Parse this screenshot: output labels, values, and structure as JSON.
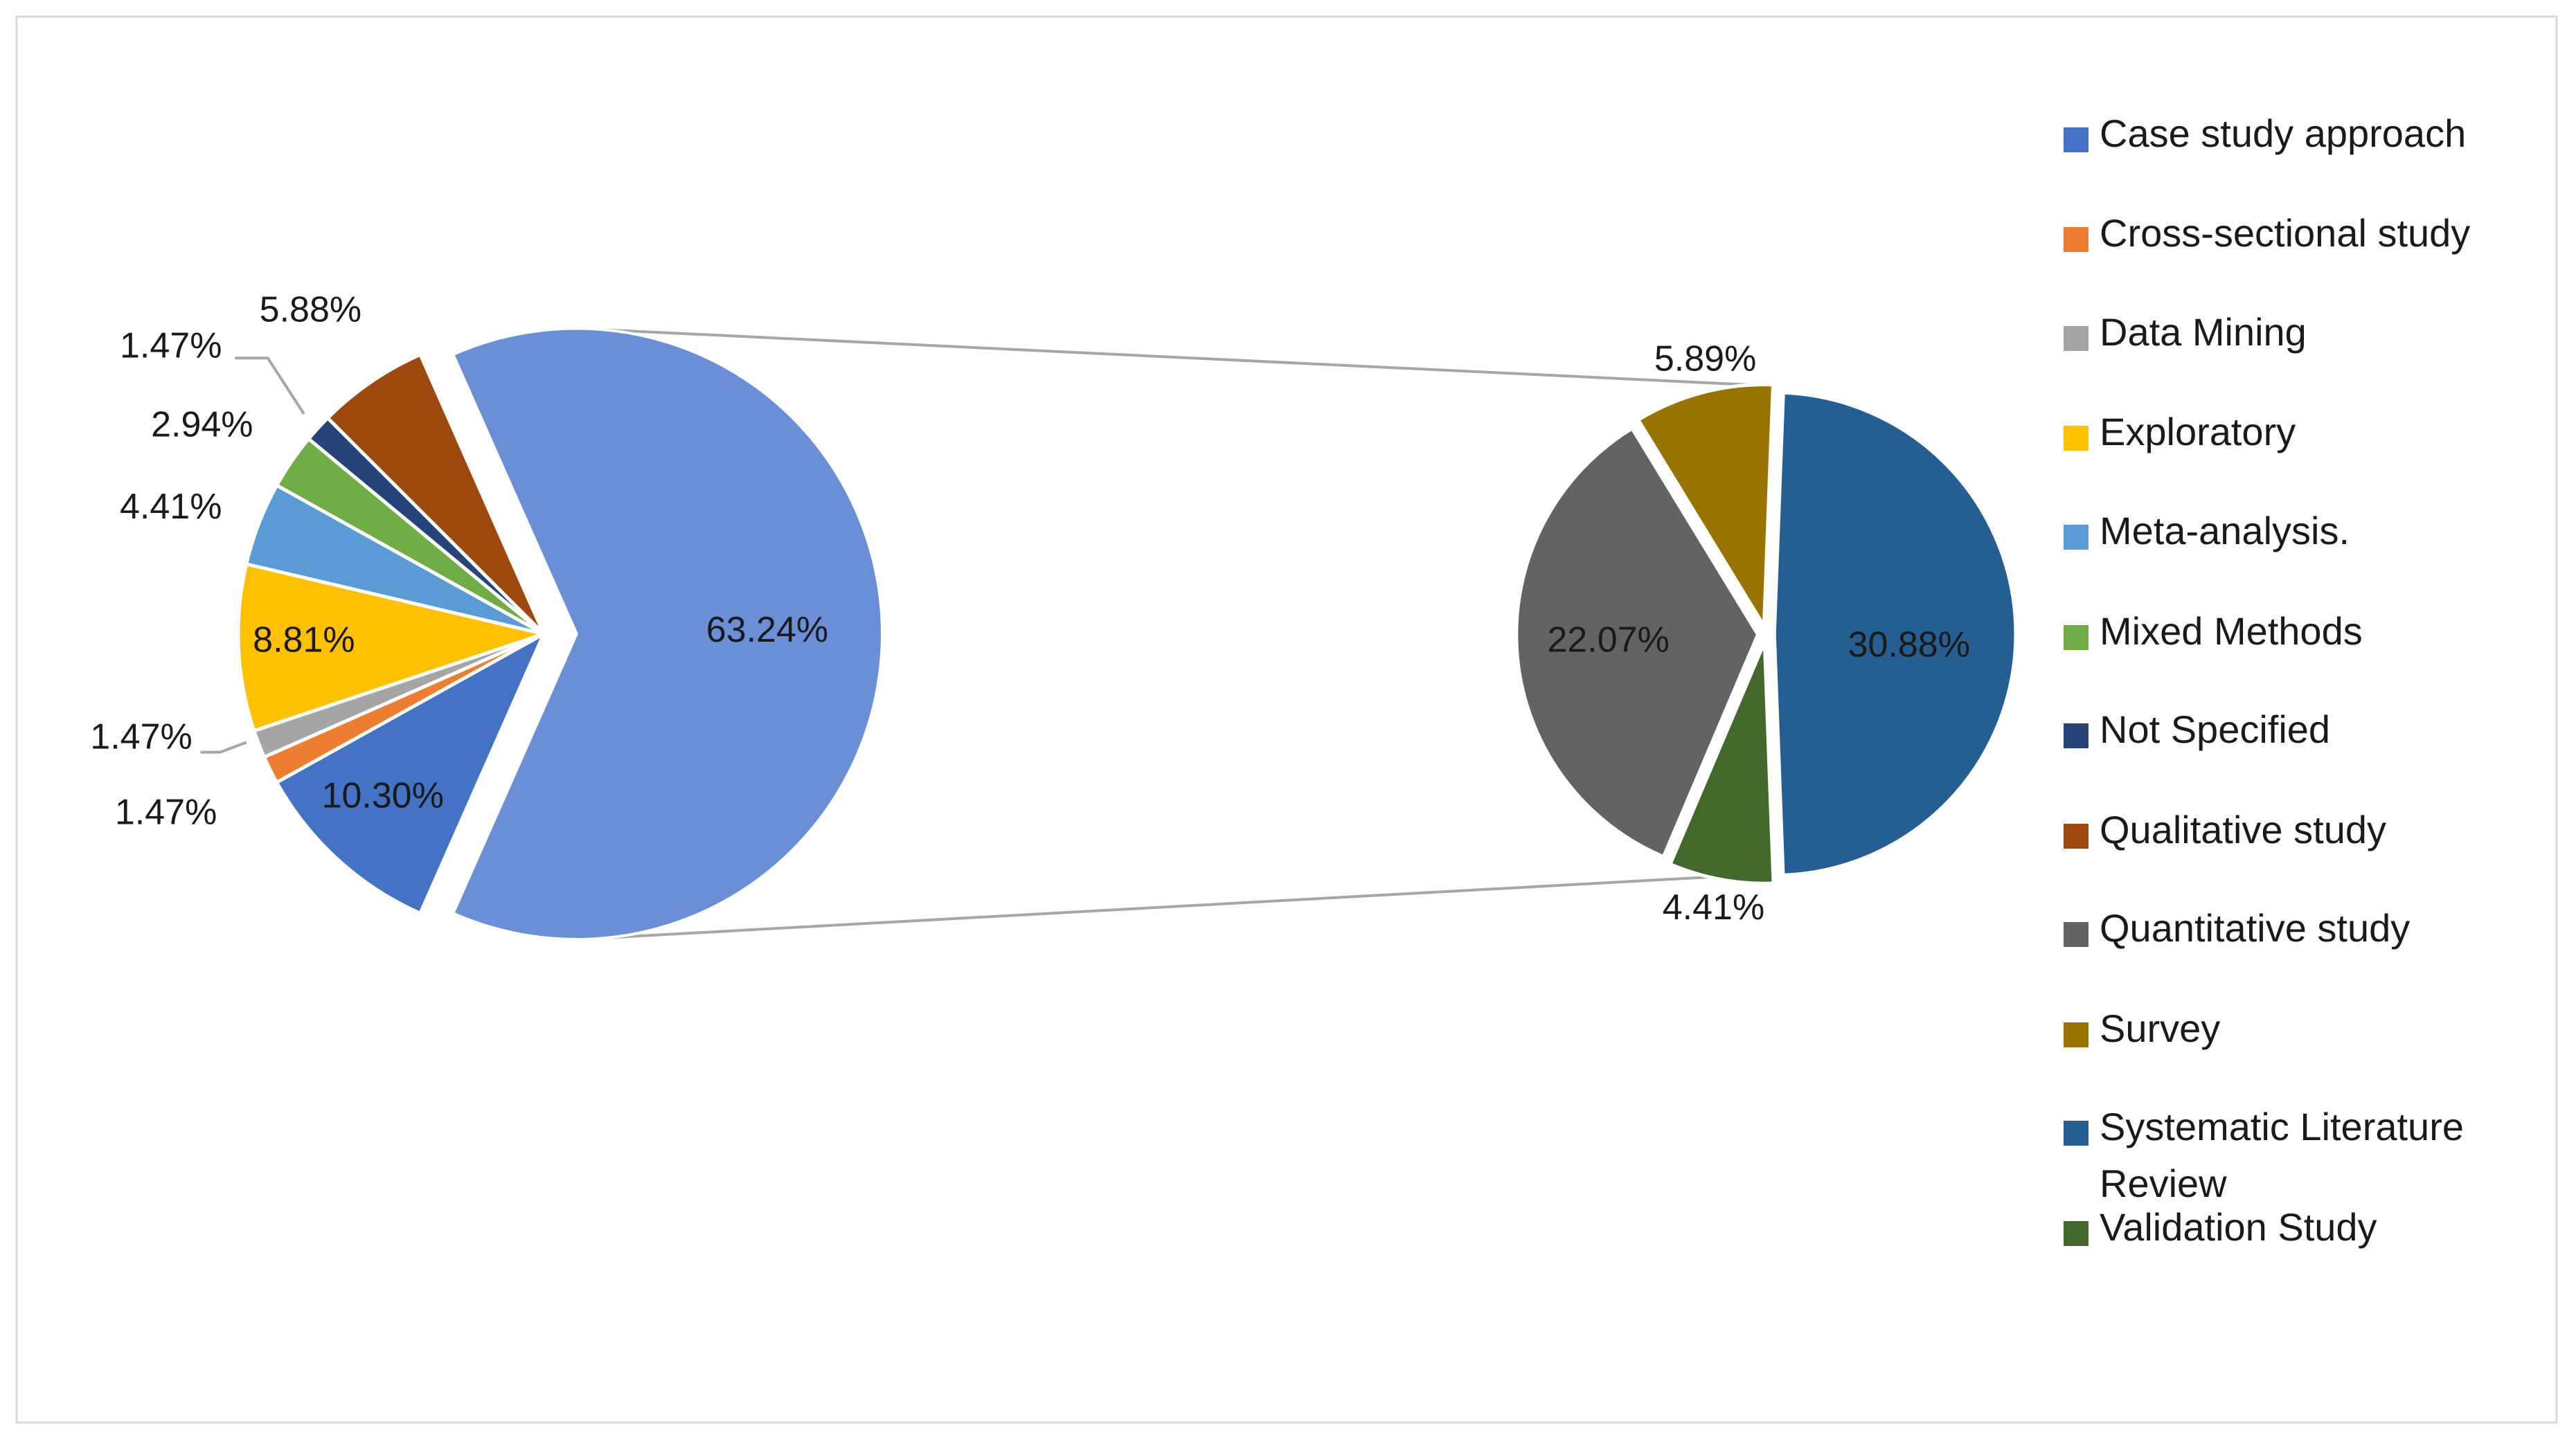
{
  "chart_data": {
    "type": "pie_of_pie",
    "categories": [
      "Case study approach",
      "Cross-sectional study",
      "Data Mining",
      "Exploratory",
      "Meta-analysis.",
      "Mixed Methods",
      "Not Specified",
      "Qualitative study",
      "Quantitative study",
      "Survey",
      "Systematic Literature Review",
      "Validation Study"
    ],
    "values": [
      10.3,
      1.47,
      1.47,
      8.81,
      4.41,
      2.94,
      1.47,
      5.88,
      22.07,
      5.89,
      30.88,
      4.41
    ],
    "value_labels": [
      "10.30%",
      "1.47%",
      "1.47%",
      "8.81%",
      "4.41%",
      "2.94%",
      "1.47%",
      "5.88%",
      "22.07%",
      "5.89%",
      "30.88%",
      "4.41%"
    ],
    "colors": [
      "#4472c4",
      "#ed7d31",
      "#a5a5a5",
      "#ffc000",
      "#5b9bd5",
      "#70ad47",
      "#264478",
      "#9e480e",
      "#636363",
      "#997300",
      "#255e91",
      "#43682b"
    ],
    "other_value": 63.24,
    "other_value_label": "63.24%",
    "other_color": "#6a8fd6",
    "secondary_count": 4,
    "legend": "right"
  }
}
